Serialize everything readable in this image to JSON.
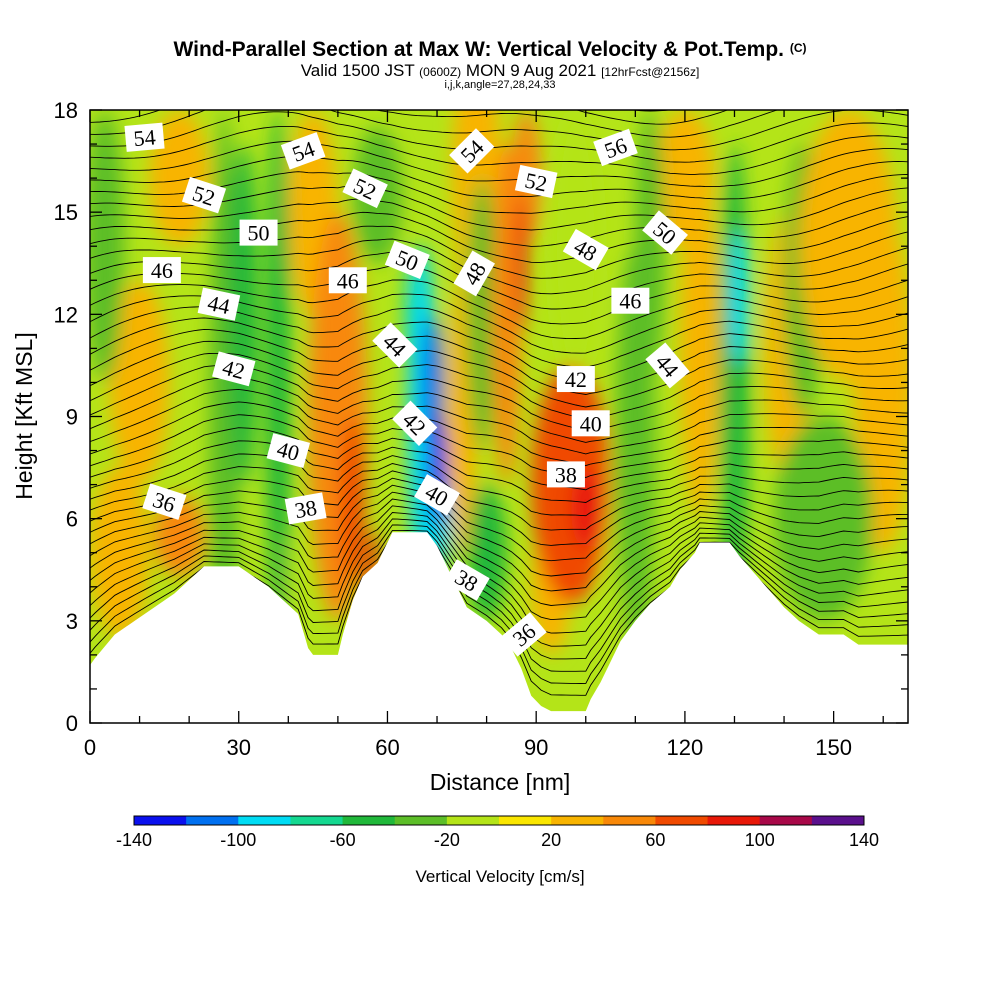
{
  "chart_data": {
    "type": "heatmap",
    "title": "Wind-Parallel Section at Max W: Vertical Velocity & Pot.Temp.",
    "title_mark": "(C)",
    "subtitle_parts": {
      "valid": "Valid 1500 JST",
      "utc": "(0600Z)",
      "date": "MON 9 Aug 2021",
      "forecast": "[12hrFcst@2156z]"
    },
    "subtitle2": "i,j,k,angle=27,28,24,33",
    "xlabel": "Distance [nm]",
    "ylabel": "Height [Kft MSL]",
    "xlim": [
      0,
      165
    ],
    "ylim": [
      0,
      18
    ],
    "x_ticks": [
      "0",
      "30",
      "60",
      "90",
      "120",
      "150"
    ],
    "y_ticks": [
      "0",
      "3",
      "6",
      "9",
      "12",
      "15",
      "18"
    ],
    "colorbar": {
      "label": "Vertical Velocity [cm/s]",
      "ticks": [
        "-140",
        "-100",
        "-60",
        "-20",
        "20",
        "60",
        "100",
        "140"
      ],
      "colors": [
        "#0a10ee",
        "#0070f0",
        "#00dcf4",
        "#14d890",
        "#20b83a",
        "#5cbe28",
        "#b4e418",
        "#fae600",
        "#f8b400",
        "#f88808",
        "#f04a00",
        "#e81808",
        "#a80848",
        "#5a108c"
      ]
    },
    "terrain_kft": [
      [
        0,
        1.7
      ],
      [
        1,
        1.9
      ],
      [
        5,
        2.6
      ],
      [
        9,
        3.0
      ],
      [
        13,
        3.4
      ],
      [
        17,
        3.8
      ],
      [
        20,
        4.2
      ],
      [
        23,
        4.6
      ],
      [
        30,
        4.6
      ],
      [
        33,
        4.3
      ],
      [
        36,
        4.0
      ],
      [
        39,
        3.6
      ],
      [
        42,
        3.2
      ],
      [
        44,
        2.2
      ],
      [
        45,
        2.0
      ],
      [
        50,
        2.0
      ],
      [
        51,
        2.6
      ],
      [
        52,
        3.1
      ],
      [
        53,
        3.6
      ],
      [
        55,
        4.3
      ],
      [
        58,
        4.7
      ],
      [
        61,
        5.6
      ],
      [
        68,
        5.6
      ],
      [
        70,
        5.2
      ],
      [
        72,
        4.6
      ],
      [
        74,
        4.0
      ],
      [
        76,
        3.4
      ],
      [
        80,
        3.0
      ],
      [
        83,
        2.6
      ],
      [
        85,
        2.2
      ],
      [
        87,
        1.6
      ],
      [
        88,
        1.2
      ],
      [
        89,
        0.8
      ],
      [
        91,
        0.5
      ],
      [
        93,
        0.35
      ],
      [
        100,
        0.35
      ],
      [
        101,
        0.7
      ],
      [
        103,
        1.2
      ],
      [
        105,
        1.8
      ],
      [
        107,
        2.4
      ],
      [
        110,
        3.0
      ],
      [
        113,
        3.5
      ],
      [
        117,
        4.0
      ],
      [
        119,
        4.5
      ],
      [
        122,
        5.0
      ],
      [
        123,
        5.3
      ],
      [
        129,
        5.3
      ],
      [
        131,
        4.9
      ],
      [
        134,
        4.4
      ],
      [
        137,
        3.9
      ],
      [
        140,
        3.4
      ],
      [
        143,
        3.0
      ],
      [
        147,
        2.6
      ],
      [
        152,
        2.6
      ],
      [
        155,
        2.3
      ],
      [
        165,
        2.3
      ]
    ],
    "velocity_features": [
      {
        "x": 18,
        "y": 5.5,
        "rx": 5,
        "ry": 1.2,
        "value": 50
      },
      {
        "x": 6,
        "y": 5,
        "rx": 6,
        "ry": 2.5,
        "value": 25
      },
      {
        "x": 10,
        "y": 10,
        "rx": 6,
        "ry": 3,
        "value": 30
      },
      {
        "x": 3,
        "y": 14,
        "rx": 4,
        "ry": 4,
        "value": -30
      },
      {
        "x": 18,
        "y": 16,
        "rx": 6,
        "ry": 2,
        "value": 20
      },
      {
        "x": 27,
        "y": 8,
        "rx": 3,
        "ry": 10,
        "value": -40
      },
      {
        "x": 31,
        "y": 12,
        "rx": 3,
        "ry": 5,
        "value": -55
      },
      {
        "x": 38,
        "y": 10,
        "rx": 2.5,
        "ry": 8,
        "value": -45
      },
      {
        "x": 40,
        "y": 4.5,
        "rx": 2,
        "ry": 1,
        "value": -20
      },
      {
        "x": 50,
        "y": 9,
        "rx": 6,
        "ry": 6,
        "value": 45
      },
      {
        "x": 53,
        "y": 6.5,
        "rx": 2.5,
        "ry": 2.5,
        "value": 75
      },
      {
        "x": 57,
        "y": 4.5,
        "rx": 1.2,
        "ry": 1.2,
        "value": 85
      },
      {
        "x": 45,
        "y": 15,
        "rx": 5,
        "ry": 3,
        "value": 25
      },
      {
        "x": 58,
        "y": 15.5,
        "rx": 5,
        "ry": 2,
        "value": -40
      },
      {
        "x": 67,
        "y": 9,
        "rx": 3,
        "ry": 5,
        "value": -95
      },
      {
        "x": 70,
        "y": 7.5,
        "rx": 2,
        "ry": 1.7,
        "value": -145
      },
      {
        "x": 69,
        "y": 10,
        "rx": 2.2,
        "ry": 2,
        "value": -110
      },
      {
        "x": 66,
        "y": 12,
        "rx": 2.5,
        "ry": 2,
        "value": -80
      },
      {
        "x": 71,
        "y": 6,
        "rx": 2,
        "ry": 1.5,
        "value": -95
      },
      {
        "x": 75,
        "y": 9,
        "rx": 3,
        "ry": 4,
        "value": 25
      },
      {
        "x": 78,
        "y": 16,
        "rx": 5,
        "ry": 4,
        "value": 30
      },
      {
        "x": 79,
        "y": 12,
        "rx": 3,
        "ry": 4,
        "value": -40
      },
      {
        "x": 80,
        "y": 5,
        "rx": 4,
        "ry": 2,
        "value": -50
      },
      {
        "x": 84,
        "y": 12,
        "rx": 3,
        "ry": 5,
        "value": 55
      },
      {
        "x": 87,
        "y": 13.5,
        "rx": 1.2,
        "ry": 2,
        "value": 85
      },
      {
        "x": 88,
        "y": 16,
        "rx": 3,
        "ry": 2,
        "value": 50
      },
      {
        "x": 97,
        "y": 7,
        "rx": 8,
        "ry": 3.5,
        "value": 70
      },
      {
        "x": 100,
        "y": 6.3,
        "rx": 3,
        "ry": 1.2,
        "value": 95
      },
      {
        "x": 93,
        "y": 4,
        "rx": 4,
        "ry": 2,
        "value": 30
      },
      {
        "x": 98,
        "y": 14,
        "rx": 5,
        "ry": 4,
        "value": -20
      },
      {
        "x": 106,
        "y": 5,
        "rx": 2,
        "ry": 3,
        "value": -20
      },
      {
        "x": 110,
        "y": 8,
        "rx": 4,
        "ry": 6,
        "value": -40
      },
      {
        "x": 113,
        "y": 14,
        "rx": 3,
        "ry": 4,
        "value": -40
      },
      {
        "x": 120,
        "y": 16,
        "rx": 6,
        "ry": 2,
        "value": 20
      },
      {
        "x": 123,
        "y": 11,
        "rx": 4,
        "ry": 5,
        "value": 30
      },
      {
        "x": 130,
        "y": 10,
        "rx": 3,
        "ry": 7,
        "value": -60
      },
      {
        "x": 131,
        "y": 12.5,
        "rx": 2,
        "ry": 2,
        "value": -85
      },
      {
        "x": 141,
        "y": 11,
        "rx": 5,
        "ry": 4,
        "value": 25
      },
      {
        "x": 148,
        "y": 6,
        "rx": 10,
        "ry": 3,
        "value": -30
      },
      {
        "x": 144,
        "y": 13,
        "rx": 4,
        "ry": 4,
        "value": -30
      },
      {
        "x": 153,
        "y": 14,
        "rx": 10,
        "ry": 4,
        "value": 35
      },
      {
        "x": 160,
        "y": 10,
        "rx": 6,
        "ry": 5,
        "value": 25
      }
    ],
    "theta_labels": [
      {
        "text": "54",
        "x": 11,
        "y": 17.2,
        "angle": -5
      },
      {
        "text": "52",
        "x": 23,
        "y": 15.5,
        "angle": 18
      },
      {
        "text": "50",
        "x": 34,
        "y": 14.4,
        "angle": 0
      },
      {
        "text": "46",
        "x": 14.5,
        "y": 13.3,
        "angle": 0
      },
      {
        "text": "44",
        "x": 26,
        "y": 12.3,
        "angle": 12
      },
      {
        "text": "42",
        "x": 29,
        "y": 10.4,
        "angle": 15
      },
      {
        "text": "40",
        "x": 40,
        "y": 8.0,
        "angle": 15
      },
      {
        "text": "36",
        "x": 15,
        "y": 6.5,
        "angle": 18
      },
      {
        "text": "38",
        "x": 43.5,
        "y": 6.3,
        "angle": -10
      },
      {
        "text": "54",
        "x": 43,
        "y": 16.8,
        "angle": -20
      },
      {
        "text": "52",
        "x": 55.5,
        "y": 15.7,
        "angle": 25
      },
      {
        "text": "46",
        "x": 52,
        "y": 13.0,
        "angle": 0
      },
      {
        "text": "50",
        "x": 64,
        "y": 13.6,
        "angle": 22
      },
      {
        "text": "44",
        "x": 61.5,
        "y": 11.1,
        "angle": 45
      },
      {
        "text": "42",
        "x": 65.5,
        "y": 8.8,
        "angle": 45
      },
      {
        "text": "40",
        "x": 70,
        "y": 6.7,
        "angle": 30
      },
      {
        "text": "38",
        "x": 76,
        "y": 4.2,
        "angle": 30
      },
      {
        "text": "54",
        "x": 77,
        "y": 16.8,
        "angle": -45
      },
      {
        "text": "48",
        "x": 77.5,
        "y": 13.2,
        "angle": -60
      },
      {
        "text": "52",
        "x": 90,
        "y": 15.9,
        "angle": 12
      },
      {
        "text": "48",
        "x": 100,
        "y": 13.9,
        "angle": 30
      },
      {
        "text": "42",
        "x": 98,
        "y": 10.1,
        "angle": 0
      },
      {
        "text": "40",
        "x": 101,
        "y": 8.8,
        "angle": 0
      },
      {
        "text": "38",
        "x": 96,
        "y": 7.3,
        "angle": 0
      },
      {
        "text": "36",
        "x": 87.5,
        "y": 2.6,
        "angle": -40
      },
      {
        "text": "56",
        "x": 106,
        "y": 16.9,
        "angle": -20
      },
      {
        "text": "46",
        "x": 109,
        "y": 12.4,
        "angle": 0
      },
      {
        "text": "50",
        "x": 116,
        "y": 14.4,
        "angle": 40
      },
      {
        "text": "44",
        "x": 116.5,
        "y": 10.5,
        "angle": 50
      }
    ]
  }
}
